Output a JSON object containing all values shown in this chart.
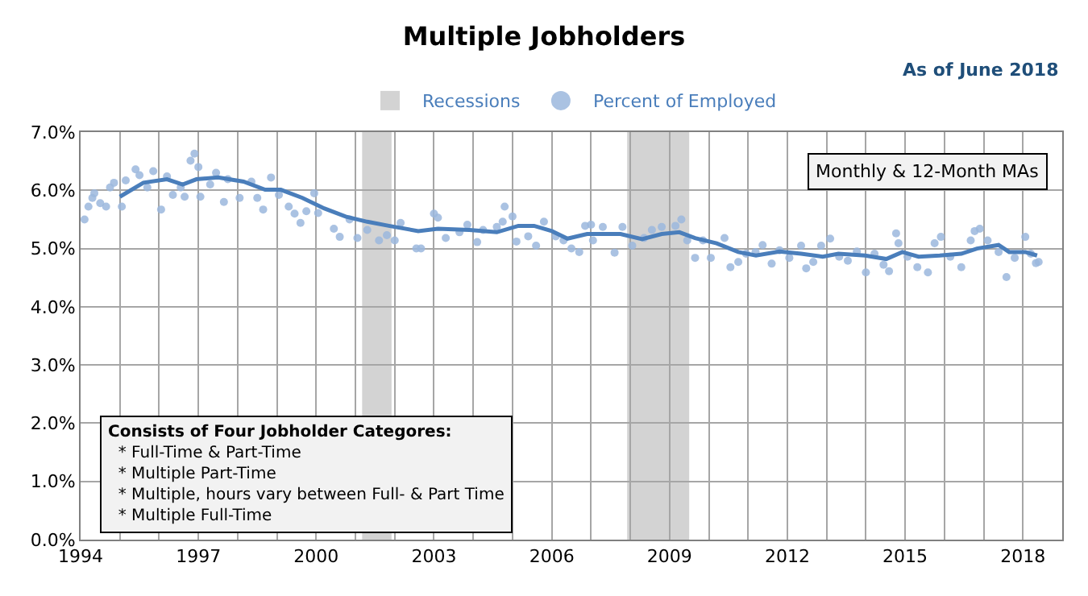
{
  "chart_data": {
    "type": "scatter",
    "title": "Multiple Jobholders",
    "annotations": [
      "As of June 2018",
      "Monthly & 12-Month MAs",
      "Consists of Four Jobholder Categores:\n  * Full-Time & Part-Time\n  * Multiple Part-Time\n  * Multiple, hours vary between Full- & Part Time\n  * Multiple Full-Time"
    ],
    "series": [
      {
        "name": "Percent of Employed",
        "color": "#9bb7dd",
        "marker": "circle",
        "x": [
          1994.1,
          1994.2,
          1994.3,
          1994.35,
          1994.5,
          1994.65,
          1994.75,
          1994.85,
          1995.05,
          1995.15,
          1995.4,
          1995.5,
          1995.7,
          1995.85,
          1996.05,
          1996.2,
          1996.35,
          1996.55,
          1996.65,
          1996.8,
          1996.9,
          1997.0,
          1997.05,
          1997.3,
          1997.45,
          1997.65,
          1997.75,
          1998.05,
          1998.35,
          1998.5,
          1998.65,
          1998.85,
          1999.05,
          1999.3,
          1999.45,
          1999.6,
          1999.75,
          1999.95,
          2000.05,
          2000.45,
          2000.6,
          2000.85,
          2001.05,
          2001.3,
          2001.6,
          2001.8,
          2002.0,
          2002.15,
          2002.55,
          2002.67,
          2003.0,
          2003.1,
          2003.3,
          2003.65,
          2003.85,
          2004.1,
          2004.25,
          2004.6,
          2004.75,
          2004.8,
          2005.0,
          2005.1,
          2005.4,
          2005.6,
          2005.8,
          2006.1,
          2006.3,
          2006.5,
          2006.7,
          2006.85,
          2007.0,
          2007.05,
          2007.3,
          2007.6,
          2007.8,
          2008.05,
          2008.35,
          2008.55,
          2008.8,
          2009.15,
          2009.3,
          2009.45,
          2009.65,
          2009.85,
          2010.05,
          2010.4,
          2010.55,
          2010.75,
          2010.95,
          2011.19,
          2011.37,
          2011.6,
          2011.8,
          2012.05,
          2012.35,
          2012.48,
          2012.66,
          2012.86,
          2013.09,
          2013.32,
          2013.54,
          2013.77,
          2014.0,
          2014.22,
          2014.45,
          2014.59,
          2014.77,
          2014.83,
          2015.06,
          2015.31,
          2015.58,
          2015.75,
          2015.91,
          2016.15,
          2016.43,
          2016.67,
          2016.77,
          2016.9,
          2017.1,
          2017.38,
          2017.58,
          2017.79,
          2018.06,
          2018.2,
          2018.33,
          2018.4
        ],
        "values": [
          5.5,
          5.72,
          5.87,
          5.95,
          5.78,
          5.72,
          6.05,
          6.13,
          5.72,
          6.17,
          6.36,
          6.26,
          6.05,
          6.33,
          5.67,
          6.24,
          5.92,
          6.05,
          5.89,
          6.51,
          6.63,
          6.4,
          5.89,
          6.1,
          6.3,
          5.8,
          6.19,
          5.87,
          6.15,
          5.87,
          5.67,
          6.22,
          5.92,
          5.72,
          5.6,
          5.44,
          5.64,
          5.95,
          5.61,
          5.34,
          5.2,
          5.5,
          5.18,
          5.32,
          5.14,
          5.23,
          5.14,
          5.44,
          5.0,
          5.0,
          5.6,
          5.53,
          5.18,
          5.28,
          5.41,
          5.11,
          5.32,
          5.37,
          5.46,
          5.72,
          5.55,
          5.12,
          5.21,
          5.05,
          5.46,
          5.21,
          5.14,
          5.0,
          4.94,
          5.39,
          5.41,
          5.14,
          5.37,
          4.93,
          5.37,
          5.05,
          5.18,
          5.32,
          5.37,
          5.39,
          5.5,
          5.14,
          4.84,
          5.14,
          4.84,
          5.18,
          4.68,
          4.77,
          4.91,
          4.94,
          5.06,
          4.74,
          4.97,
          4.84,
          5.05,
          4.66,
          4.77,
          5.05,
          5.17,
          4.86,
          4.79,
          4.95,
          4.59,
          4.91,
          4.72,
          4.61,
          5.26,
          5.09,
          4.86,
          4.68,
          4.59,
          5.09,
          5.2,
          4.86,
          4.68,
          5.14,
          5.3,
          5.34,
          5.14,
          4.94,
          4.51,
          4.84,
          5.2,
          4.91,
          4.75,
          4.77
        ]
      },
      {
        "type": "line",
        "color": "#4a7ebb",
        "line_style": "solid",
        "x": [
          1995.0,
          1995.6,
          1996.2,
          1996.6,
          1996.95,
          1997.5,
          1998.15,
          1998.7,
          1999.1,
          1999.65,
          2000.2,
          2000.75,
          2001.3,
          2001.85,
          2002.6,
          2003.1,
          2003.9,
          2004.6,
          2005.15,
          2005.55,
          2006.0,
          2006.4,
          2006.9,
          2007.75,
          2008.3,
          2008.8,
          2009.25,
          2009.65,
          2010.2,
          2010.75,
          2011.2,
          2011.8,
          2012.35,
          2012.9,
          2013.3,
          2013.98,
          2014.52,
          2014.93,
          2015.34,
          2015.88,
          2016.43,
          2016.83,
          2017.38,
          2017.65,
          2018.06,
          2018.36
        ],
        "values": [
          5.89,
          6.13,
          6.19,
          6.1,
          6.19,
          6.22,
          6.15,
          6.01,
          6.01,
          5.87,
          5.69,
          5.55,
          5.46,
          5.39,
          5.3,
          5.34,
          5.32,
          5.28,
          5.39,
          5.39,
          5.3,
          5.17,
          5.25,
          5.25,
          5.16,
          5.25,
          5.28,
          5.18,
          5.09,
          4.94,
          4.88,
          4.95,
          4.91,
          4.86,
          4.91,
          4.88,
          4.82,
          4.94,
          4.86,
          4.88,
          4.91,
          5.0,
          5.06,
          4.94,
          4.94,
          4.88
        ]
      }
    ],
    "bands": [
      {
        "axis": "x",
        "from": 2001.17,
        "to": 2001.92,
        "label": "Recessions",
        "color": "#d3d3d3"
      },
      {
        "axis": "x",
        "from": 2007.92,
        "to": 2009.5,
        "color": "#d3d3d3"
      }
    ],
    "xlim": [
      1994,
      2019
    ],
    "xticks": [
      1994,
      {
        "value": 1995,
        "label": null
      },
      {
        "value": 1996,
        "label": null
      },
      1997,
      {
        "value": 1998,
        "label": null
      },
      {
        "value": 1999,
        "label": null
      },
      2000,
      {
        "value": 2001,
        "label": null
      },
      {
        "value": 2002,
        "label": null
      },
      2003,
      {
        "value": 2004,
        "label": null
      },
      {
        "value": 2005,
        "label": null
      },
      2006,
      {
        "value": 2007,
        "label": null
      },
      {
        "value": 2008,
        "label": null
      },
      2009,
      {
        "value": 2010,
        "label": null
      },
      {
        "value": 2011,
        "label": null
      },
      2012,
      {
        "value": 2013,
        "label": null
      },
      {
        "value": 2014,
        "label": null
      },
      2015,
      {
        "value": 2016,
        "label": null
      },
      {
        "value": 2017,
        "label": null
      },
      2018,
      {
        "value": 2019,
        "label": null
      }
    ],
    "ylim": [
      0,
      7
    ],
    "yticks": [
      {
        "value": 0,
        "label": "0.0%"
      },
      {
        "value": 1,
        "label": "1.0%"
      },
      {
        "value": 2,
        "label": "2.0%"
      },
      {
        "value": 3,
        "label": "3.0%"
      },
      {
        "value": 4,
        "label": "4.0%"
      },
      {
        "value": 5,
        "label": "5.0%"
      },
      {
        "value": 6,
        "label": "6.0%"
      },
      {
        "value": 7,
        "label": "7.0%"
      }
    ],
    "grid": true,
    "legend": "top"
  }
}
